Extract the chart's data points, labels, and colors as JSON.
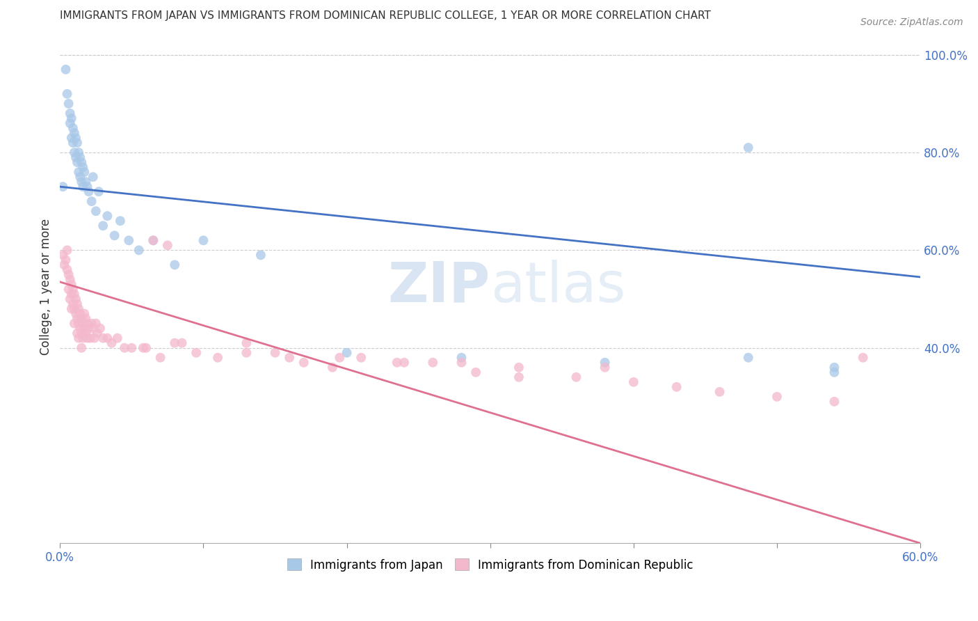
{
  "title": "IMMIGRANTS FROM JAPAN VS IMMIGRANTS FROM DOMINICAN REPUBLIC COLLEGE, 1 YEAR OR MORE CORRELATION CHART",
  "source": "Source: ZipAtlas.com",
  "ylabel": "College, 1 year or more",
  "x_min": 0.0,
  "x_max": 0.6,
  "y_min": 0.0,
  "y_max": 1.05,
  "right_yticks": [
    0.4,
    0.6,
    0.8,
    1.0
  ],
  "right_yticklabels": [
    "40.0%",
    "60.0%",
    "80.0%",
    "100.0%"
  ],
  "japan_color": "#a8c8e8",
  "dr_color": "#f4b8cc",
  "japan_trend_color": "#4472c4",
  "dr_trend_color": "#e07090",
  "japan_trend": [
    0.0,
    0.6,
    0.73,
    0.545
  ],
  "dr_trend": [
    0.0,
    0.6,
    0.535,
    0.0
  ],
  "background_color": "#ffffff",
  "grid_color": "#cccccc",
  "watermark_zip": "ZIP",
  "watermark_atlas": "atlas",
  "japan_points_x": [
    0.002,
    0.004,
    0.005,
    0.006,
    0.007,
    0.007,
    0.008,
    0.008,
    0.009,
    0.009,
    0.01,
    0.01,
    0.011,
    0.011,
    0.012,
    0.012,
    0.013,
    0.013,
    0.014,
    0.014,
    0.015,
    0.015,
    0.016,
    0.016,
    0.017,
    0.018,
    0.019,
    0.02,
    0.022,
    0.023,
    0.025,
    0.027,
    0.03,
    0.033,
    0.038,
    0.042,
    0.048,
    0.055,
    0.065,
    0.08,
    0.1,
    0.14,
    0.2,
    0.28,
    0.38,
    0.48,
    0.54,
    0.54,
    0.48
  ],
  "japan_points_y": [
    0.73,
    0.97,
    0.92,
    0.9,
    0.88,
    0.86,
    0.87,
    0.83,
    0.85,
    0.82,
    0.84,
    0.8,
    0.83,
    0.79,
    0.82,
    0.78,
    0.8,
    0.76,
    0.79,
    0.75,
    0.78,
    0.74,
    0.77,
    0.73,
    0.76,
    0.74,
    0.73,
    0.72,
    0.7,
    0.75,
    0.68,
    0.72,
    0.65,
    0.67,
    0.63,
    0.66,
    0.62,
    0.6,
    0.62,
    0.57,
    0.62,
    0.59,
    0.39,
    0.38,
    0.37,
    0.81,
    0.36,
    0.35,
    0.38
  ],
  "dr_points_x": [
    0.002,
    0.003,
    0.004,
    0.005,
    0.005,
    0.006,
    0.006,
    0.007,
    0.007,
    0.008,
    0.008,
    0.008,
    0.009,
    0.009,
    0.01,
    0.01,
    0.01,
    0.011,
    0.011,
    0.012,
    0.012,
    0.012,
    0.013,
    0.013,
    0.013,
    0.014,
    0.014,
    0.015,
    0.015,
    0.015,
    0.016,
    0.016,
    0.017,
    0.017,
    0.018,
    0.018,
    0.019,
    0.019,
    0.02,
    0.021,
    0.022,
    0.023,
    0.024,
    0.025,
    0.026,
    0.028,
    0.03,
    0.033,
    0.036,
    0.04,
    0.045,
    0.05,
    0.058,
    0.065,
    0.075,
    0.085,
    0.095,
    0.11,
    0.13,
    0.15,
    0.17,
    0.19,
    0.21,
    0.235,
    0.26,
    0.29,
    0.32,
    0.36,
    0.4,
    0.43,
    0.46,
    0.5,
    0.54,
    0.06,
    0.07,
    0.08,
    0.13,
    0.16,
    0.195,
    0.24,
    0.28,
    0.32,
    0.38,
    0.56
  ],
  "dr_points_y": [
    0.59,
    0.57,
    0.58,
    0.6,
    0.56,
    0.55,
    0.52,
    0.54,
    0.5,
    0.53,
    0.51,
    0.48,
    0.52,
    0.49,
    0.51,
    0.48,
    0.45,
    0.5,
    0.47,
    0.49,
    0.46,
    0.43,
    0.48,
    0.45,
    0.42,
    0.47,
    0.44,
    0.46,
    0.43,
    0.4,
    0.45,
    0.42,
    0.47,
    0.44,
    0.46,
    0.43,
    0.45,
    0.42,
    0.44,
    0.42,
    0.45,
    0.44,
    0.42,
    0.45,
    0.43,
    0.44,
    0.42,
    0.42,
    0.41,
    0.42,
    0.4,
    0.4,
    0.4,
    0.62,
    0.61,
    0.41,
    0.39,
    0.38,
    0.39,
    0.39,
    0.37,
    0.36,
    0.38,
    0.37,
    0.37,
    0.35,
    0.34,
    0.34,
    0.33,
    0.32,
    0.31,
    0.3,
    0.29,
    0.4,
    0.38,
    0.41,
    0.41,
    0.38,
    0.38,
    0.37,
    0.37,
    0.36,
    0.36,
    0.38
  ]
}
